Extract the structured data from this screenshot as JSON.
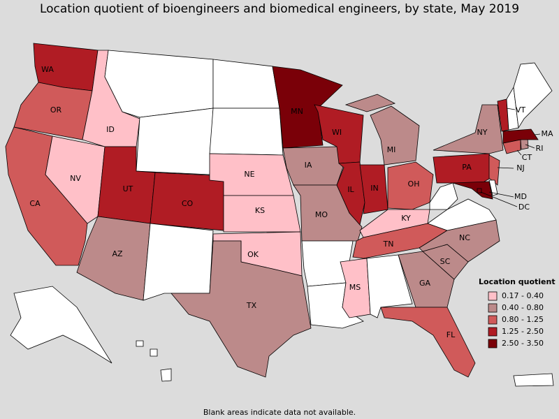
{
  "title": "Location quotient of bioengineers and biomedical engineers, by state, May 2019",
  "legend": {
    "title": "Location quotient",
    "items": [
      {
        "label": "0.17 - 0.40",
        "color": "#ffc0c8"
      },
      {
        "label": "0.40 - 0.80",
        "color": "#bc8a8a"
      },
      {
        "label": "0.80 - 1.25",
        "color": "#d05a5a"
      },
      {
        "label": "1.25 - 2.50",
        "color": "#b01c24"
      },
      {
        "label": "2.50 - 3.50",
        "color": "#7a0008"
      }
    ]
  },
  "states": [
    {
      "label": "WA",
      "color": "#b01c24"
    },
    {
      "label": "OR",
      "color": "#d05a5a"
    },
    {
      "label": "CA",
      "color": "#d05a5a"
    },
    {
      "label": "NV",
      "color": "#ffc0c8"
    },
    {
      "label": "ID",
      "color": "#ffc0c8"
    },
    {
      "label": "UT",
      "color": "#b01c24"
    },
    {
      "label": "CO",
      "color": "#b01c24"
    },
    {
      "label": "AZ",
      "color": "#bc8a8a"
    },
    {
      "label": "NE",
      "color": "#ffc0c8"
    },
    {
      "label": "KS",
      "color": "#ffc0c8"
    },
    {
      "label": "OK",
      "color": "#ffc0c8"
    },
    {
      "label": "TX",
      "color": "#bc8a8a"
    },
    {
      "label": "MN",
      "color": "#7a0008"
    },
    {
      "label": "IA",
      "color": "#bc8a8a"
    },
    {
      "label": "MO",
      "color": "#bc8a8a"
    },
    {
      "label": "WI",
      "color": "#b01c24"
    },
    {
      "label": "IL",
      "color": "#b01c24"
    },
    {
      "label": "IN",
      "color": "#b01c24"
    },
    {
      "label": "MI",
      "color": "#bc8a8a"
    },
    {
      "label": "OH",
      "color": "#d05a5a"
    },
    {
      "label": "KY",
      "color": "#ffc0c8"
    },
    {
      "label": "TN",
      "color": "#d05a5a"
    },
    {
      "label": "MS",
      "color": "#ffc0c8"
    },
    {
      "label": "NC",
      "color": "#bc8a8a"
    },
    {
      "label": "SC",
      "color": "#bc8a8a"
    },
    {
      "label": "GA",
      "color": "#bc8a8a"
    },
    {
      "label": "FL",
      "color": "#d05a5a"
    },
    {
      "label": "PA",
      "color": "#b01c24"
    },
    {
      "label": "NY",
      "color": "#bc8a8a"
    },
    {
      "label": "NJ",
      "color": "#d05a5a"
    },
    {
      "label": "CT",
      "color": "#d05a5a"
    },
    {
      "label": "RI",
      "color": "#bc8a8a"
    },
    {
      "label": "MA",
      "color": "#7a0008"
    },
    {
      "label": "VT",
      "color": "#b01c24"
    },
    {
      "label": "MD",
      "color": "#7a0008"
    },
    {
      "label": "DC",
      "color": "#7a0008"
    }
  ],
  "note": "Blank areas indicate data not available."
}
